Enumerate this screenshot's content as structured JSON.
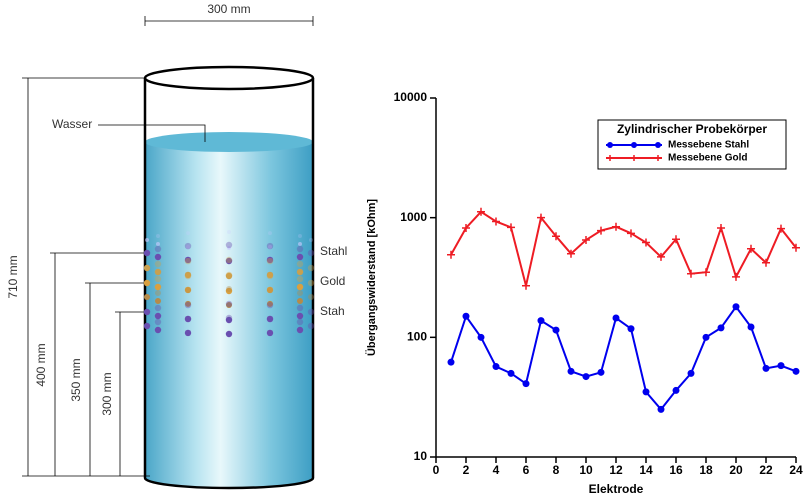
{
  "diagram": {
    "width_label": "300 mm",
    "height_labels": [
      "710 mm",
      "400 mm",
      "350 mm",
      "300 mm"
    ],
    "water_label": "Wasser",
    "ring_labels": [
      "Stahl",
      "Gold",
      "Stah"
    ]
  },
  "chart_data": {
    "type": "line",
    "y_scale": "log",
    "xlabel": "Elektrode",
    "ylabel": "Übergangswiderstand [kOhm]",
    "legend_title": "Zylindrischer Probekörper",
    "legend": "upper right",
    "x": [
      1,
      2,
      3,
      4,
      5,
      6,
      7,
      8,
      9,
      10,
      11,
      12,
      13,
      14,
      15,
      16,
      17,
      18,
      19,
      20,
      21,
      22,
      23,
      24
    ],
    "series": [
      {
        "name": "Messebene Stahl",
        "color": "#0000ee",
        "marker": "circle",
        "values": [
          62,
          150,
          100,
          57,
          50,
          41,
          138,
          115,
          52,
          47,
          51,
          145,
          118,
          35,
          25,
          36,
          50,
          100,
          120,
          180,
          122,
          55,
          58,
          52
        ]
      },
      {
        "name": "Messebene Gold",
        "color": "#ee1c24",
        "marker": "plus",
        "values": [
          490,
          820,
          1120,
          930,
          830,
          270,
          1000,
          700,
          500,
          650,
          780,
          840,
          740,
          620,
          470,
          660,
          340,
          350,
          820,
          320,
          550,
          420,
          810,
          560
        ]
      }
    ],
    "xlim": [
      0,
      24
    ],
    "xticks": [
      0,
      2,
      4,
      6,
      8,
      10,
      12,
      14,
      16,
      18,
      20,
      22,
      24
    ],
    "ylim": [
      10,
      10000
    ],
    "yticks": [
      10,
      100,
      1000,
      10000
    ]
  }
}
